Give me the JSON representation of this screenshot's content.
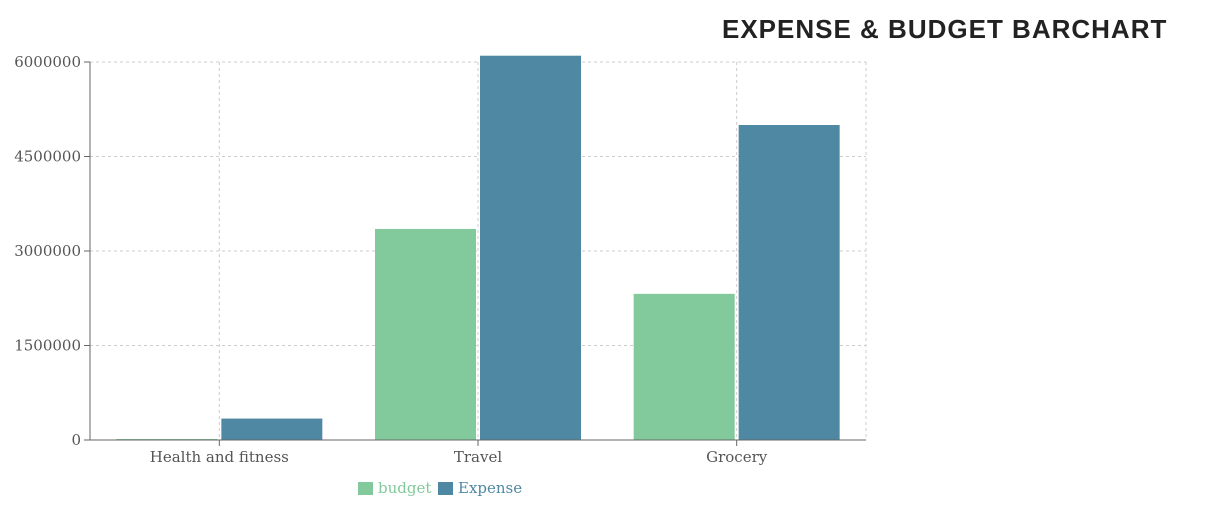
{
  "chart_data": {
    "type": "bar",
    "title": "EXPENSE & BUDGET BARCHART",
    "categories": [
      "Health and fitness",
      "Travel",
      "Grocery"
    ],
    "series": [
      {
        "name": "budget",
        "values": [
          0,
          3350000,
          2320000
        ],
        "color": "#82c99b"
      },
      {
        "name": "Expense",
        "values": [
          340000,
          6100000,
          5000000
        ],
        "color": "#4f88a3"
      }
    ],
    "y_ticks": [
      "0",
      "1500000",
      "3000000",
      "4500000",
      "6000000"
    ],
    "ylim": [
      0,
      6000000
    ],
    "grid": true,
    "legend_position": "bottom-center"
  }
}
